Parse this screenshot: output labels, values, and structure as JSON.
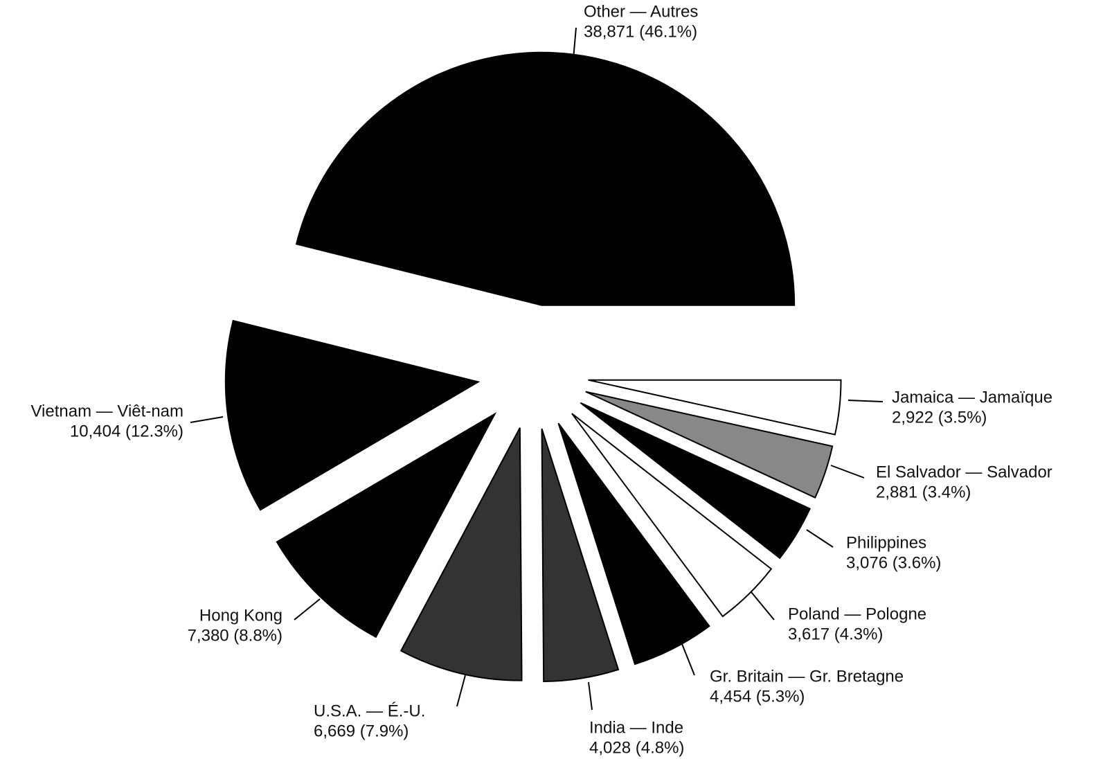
{
  "chart_data": {
    "type": "pie",
    "categories": [
      "Other — Autres",
      "Vietnam — Viêt-nam",
      "Hong Kong",
      "U.S.A. — É.-U.",
      "India — Inde",
      "Gr. Britain — Gr. Bretagne",
      "Poland — Pologne",
      "Philippines",
      "El Salvador — Salvador",
      "Jamaica — Jamaïque"
    ],
    "values": [
      38871,
      10404,
      7380,
      6669,
      4028,
      4454,
      3617,
      3076,
      2881,
      2922
    ],
    "value_labels": [
      "38,871 (46.1%)",
      "10,404 (12.3%)",
      "7,380 (8.8%)",
      "6,669 (7.9%)",
      "4,028 (4.8%)",
      "4,454 (5.3%)",
      "3,617 (4.3%)",
      "3,076 (3.6%)",
      "2,881 (3.4%)",
      "2,922 (3.5%)"
    ],
    "colors": [
      "#000000",
      "#000000",
      "#000000",
      "#333333",
      "#333333",
      "#000000",
      "#ffffff",
      "#000000",
      "#888888",
      "#ffffff"
    ]
  }
}
